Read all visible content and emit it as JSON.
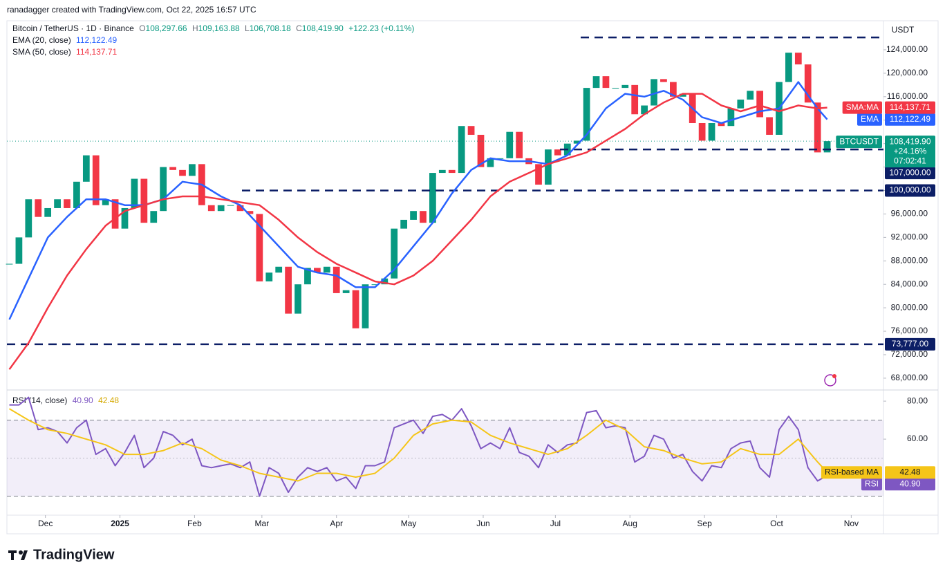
{
  "header": {
    "attribution": "ranadagger created with TradingView.com, Oct 22, 2025 16:57 UTC",
    "symbol": "Bitcoin / TetherUS · 1D · Binance",
    "ohlc": [
      {
        "key": "O",
        "value": "108,297.66"
      },
      {
        "key": "H",
        "value": "109,163.88"
      },
      {
        "key": "L",
        "value": "106,708.18"
      },
      {
        "key": "C",
        "value": "108,419.90"
      }
    ],
    "change": "+122.23 (+0.11%)"
  },
  "chart_data": [
    {
      "type": "candlestick",
      "name": "BTCUSDT",
      "unit": "USDT",
      "up_color": "#089981",
      "down_color": "#f23645",
      "x": [
        1,
        5,
        9,
        13,
        17,
        21,
        25,
        29,
        33,
        37,
        41,
        45,
        49,
        53,
        57,
        61,
        65,
        69,
        73,
        77,
        81,
        85,
        89,
        93,
        97,
        101,
        105,
        109,
        113,
        117,
        121,
        125,
        129,
        133,
        137,
        141,
        145,
        149,
        153,
        157,
        161,
        165,
        169,
        173,
        177,
        181,
        185,
        189,
        193,
        197,
        201,
        205,
        209,
        213,
        217,
        221,
        225,
        229,
        233,
        237,
        241,
        245,
        249,
        253,
        257,
        261,
        265,
        269,
        273,
        277,
        281,
        285,
        289,
        293,
        297,
        301,
        305,
        309,
        313,
        317,
        321,
        325,
        329,
        333,
        337,
        341
      ],
      "values": [
        87500,
        92000,
        98500,
        95500,
        97000,
        98500,
        97000,
        101500,
        106000,
        97500,
        98500,
        93500,
        97000,
        102000,
        94500,
        96500,
        104000,
        103500,
        102500,
        104500,
        97500,
        96500,
        97500,
        97500,
        96500,
        96000,
        84500,
        86000,
        87000,
        79000,
        84000,
        86800,
        86000,
        87000,
        82500,
        83000,
        76500,
        84000,
        84000,
        85000,
        93500,
        95000,
        96500,
        94500,
        103000,
        103500,
        103000,
        111000,
        109500,
        104000,
        105500,
        105500,
        110000,
        105500,
        104500,
        101000,
        107000,
        106000,
        108000,
        108500,
        117500,
        119500,
        117500,
        117500,
        118000,
        113000,
        114500,
        119000,
        118500,
        116000,
        116500,
        111500,
        108500,
        111500,
        111000,
        114000,
        115500,
        117000,
        112500,
        109500,
        118500,
        123500,
        121500,
        115000,
        106500,
        108419.9
      ],
      "last_badge": {
        "label": "108,419.90",
        "change": "+24.16%",
        "countdown": "07:02:41"
      },
      "series": [
        {
          "name": "EMA (20, close)",
          "badge": "EMA",
          "value_label": "112,122.49",
          "color": "#2962ff",
          "x": [
            1,
            9,
            17,
            25,
            33,
            41,
            49,
            57,
            65,
            73,
            81,
            89,
            97,
            105,
            113,
            121,
            129,
            137,
            145,
            153,
            161,
            169,
            177,
            185,
            193,
            201,
            209,
            217,
            225,
            233,
            241,
            249,
            257,
            265,
            273,
            281,
            289,
            297,
            305,
            313,
            321,
            329,
            337,
            341
          ],
          "values": [
            78000,
            85000,
            92000,
            95500,
            98500,
            98500,
            97500,
            97500,
            98500,
            101500,
            101000,
            99000,
            97500,
            94000,
            90500,
            87000,
            86000,
            85500,
            83500,
            83500,
            86500,
            90500,
            94500,
            99500,
            103500,
            105500,
            105000,
            105000,
            104500,
            106000,
            109500,
            114000,
            116500,
            116000,
            117000,
            115500,
            112500,
            111500,
            112500,
            113500,
            114000,
            118500,
            114000,
            112122.49
          ]
        },
        {
          "name": "SMA (50, close)",
          "badge": "SMA:MA",
          "value_label": "114,137.71",
          "color": "#f23645",
          "x": [
            1,
            9,
            17,
            25,
            33,
            41,
            49,
            57,
            65,
            73,
            81,
            89,
            97,
            105,
            113,
            121,
            129,
            137,
            145,
            153,
            161,
            169,
            177,
            185,
            193,
            201,
            209,
            217,
            225,
            233,
            241,
            249,
            257,
            265,
            273,
            281,
            289,
            297,
            305,
            313,
            321,
            329,
            337,
            341
          ],
          "values": [
            69500,
            74000,
            80000,
            85500,
            90000,
            94000,
            96500,
            97500,
            98500,
            99000,
            99000,
            98500,
            98000,
            97500,
            95000,
            92000,
            89500,
            87500,
            86000,
            84500,
            84000,
            85500,
            88000,
            91500,
            95000,
            99000,
            101500,
            103000,
            104500,
            105500,
            106500,
            108500,
            110500,
            113000,
            115000,
            116500,
            116500,
            114500,
            113500,
            114500,
            113500,
            114500,
            114000,
            114137.71
          ]
        }
      ],
      "levels": [
        {
          "value": 126100
        },
        {
          "value": 107000,
          "label": "107,000.00"
        },
        {
          "value": 100000,
          "label": "100,000.00"
        },
        {
          "value": 73777,
          "label": "73,777.00"
        }
      ],
      "level_color": "#0c1e66",
      "ylim": [
        66100,
        128950
      ],
      "yticks": [
        {
          "value": 68000,
          "label": "68,000.00"
        },
        {
          "value": 72000,
          "label": "72,000.00"
        },
        {
          "value": 76000,
          "label": "76,000.00"
        },
        {
          "value": 80000,
          "label": "80,000.00"
        },
        {
          "value": 84000,
          "label": "84,000.00"
        },
        {
          "value": 88000,
          "label": "88,000.00"
        },
        {
          "value": 92000,
          "label": "92,000.00"
        },
        {
          "value": 96000,
          "label": "96,000.00"
        },
        {
          "value": 100000,
          "label": "100,000.00"
        },
        {
          "value": 104000,
          "label": "104,000.00"
        },
        {
          "value": 108000,
          "label": "108,000.00"
        },
        {
          "value": 112000,
          "label": "112,000.00"
        },
        {
          "value": 116000,
          "label": "116,000.00"
        },
        {
          "value": 120000,
          "label": "120,000.00"
        },
        {
          "value": 124000,
          "label": "124,000.00"
        }
      ],
      "xlim": [
        0,
        364.4
      ],
      "xticks": [
        {
          "value": 16,
          "label": "Dec"
        },
        {
          "value": 47,
          "label": "2025"
        },
        {
          "value": 78,
          "label": "Feb"
        },
        {
          "value": 106,
          "label": "Mar"
        },
        {
          "value": 137,
          "label": "Apr"
        },
        {
          "value": 167,
          "label": "May"
        },
        {
          "value": 198,
          "label": "Jun"
        },
        {
          "value": 228,
          "label": "Jul"
        },
        {
          "value": 259,
          "label": "Aug"
        },
        {
          "value": 290,
          "label": "Sep"
        },
        {
          "value": 320,
          "label": "Oct"
        },
        {
          "value": 351,
          "label": "Nov"
        }
      ]
    },
    {
      "type": "line",
      "title": "RSI (14, close)",
      "series": [
        {
          "name": "RSI",
          "badge": "RSI",
          "value_label": "40.90",
          "color": "#7e57c2",
          "x": [
            1,
            5,
            9,
            13,
            17,
            21,
            25,
            29,
            33,
            37,
            41,
            45,
            49,
            53,
            57,
            61,
            65,
            69,
            73,
            77,
            81,
            85,
            89,
            93,
            97,
            101,
            105,
            109,
            113,
            117,
            121,
            125,
            129,
            133,
            137,
            141,
            145,
            149,
            153,
            157,
            161,
            165,
            169,
            173,
            177,
            181,
            185,
            189,
            193,
            197,
            201,
            205,
            209,
            213,
            217,
            221,
            225,
            229,
            233,
            237,
            241,
            245,
            249,
            253,
            257,
            261,
            265,
            269,
            273,
            277,
            281,
            285,
            289,
            293,
            297,
            301,
            305,
            309,
            313,
            317,
            321,
            325,
            329,
            333,
            337,
            341
          ],
          "values": [
            78,
            78,
            82,
            65,
            66,
            64,
            58,
            66,
            70,
            52,
            55,
            46,
            53,
            62,
            45,
            50,
            64,
            62,
            57,
            60,
            46,
            45,
            46,
            47,
            45,
            48,
            30,
            45,
            42,
            32,
            40,
            45,
            43,
            45,
            38,
            40,
            34,
            46,
            46,
            48,
            66,
            68,
            70,
            63,
            72,
            73,
            70,
            76,
            67,
            55,
            58,
            55,
            66,
            53,
            51,
            45,
            57,
            53,
            57,
            58,
            74,
            75,
            66,
            67,
            66,
            48,
            51,
            62,
            60,
            50,
            52,
            43,
            38,
            46,
            45,
            55,
            58,
            59,
            45,
            40,
            65,
            72,
            65,
            45,
            38,
            40.9
          ]
        },
        {
          "name": "RSI-based MA",
          "badge": "RSI-based MA",
          "value_label": "42.48",
          "color": "#f5c518",
          "x": [
            1,
            9,
            17,
            25,
            33,
            41,
            49,
            57,
            65,
            73,
            81,
            89,
            97,
            105,
            113,
            121,
            129,
            137,
            145,
            153,
            161,
            169,
            177,
            185,
            193,
            201,
            209,
            217,
            225,
            233,
            241,
            249,
            257,
            265,
            273,
            281,
            289,
            297,
            305,
            313,
            321,
            329,
            337,
            341
          ],
          "values": [
            76,
            70,
            65,
            63,
            60,
            57,
            52,
            52,
            54,
            58,
            55,
            49,
            46,
            42,
            40,
            38,
            42,
            42,
            40,
            42,
            50,
            62,
            68,
            70,
            69,
            62,
            58,
            55,
            52,
            55,
            62,
            70,
            65,
            56,
            54,
            50,
            47,
            48,
            55,
            52,
            52,
            60,
            48,
            42.48
          ]
        }
      ],
      "bands": [
        30,
        70
      ],
      "midline": 50,
      "ylim": [
        20,
        85.5
      ],
      "yticks": [
        {
          "value": 60,
          "label": "60.00"
        },
        {
          "value": 80,
          "label": "80.00"
        }
      ],
      "xlim": [
        0,
        364.4
      ]
    }
  ],
  "footer": {
    "brand": "TradingView"
  }
}
